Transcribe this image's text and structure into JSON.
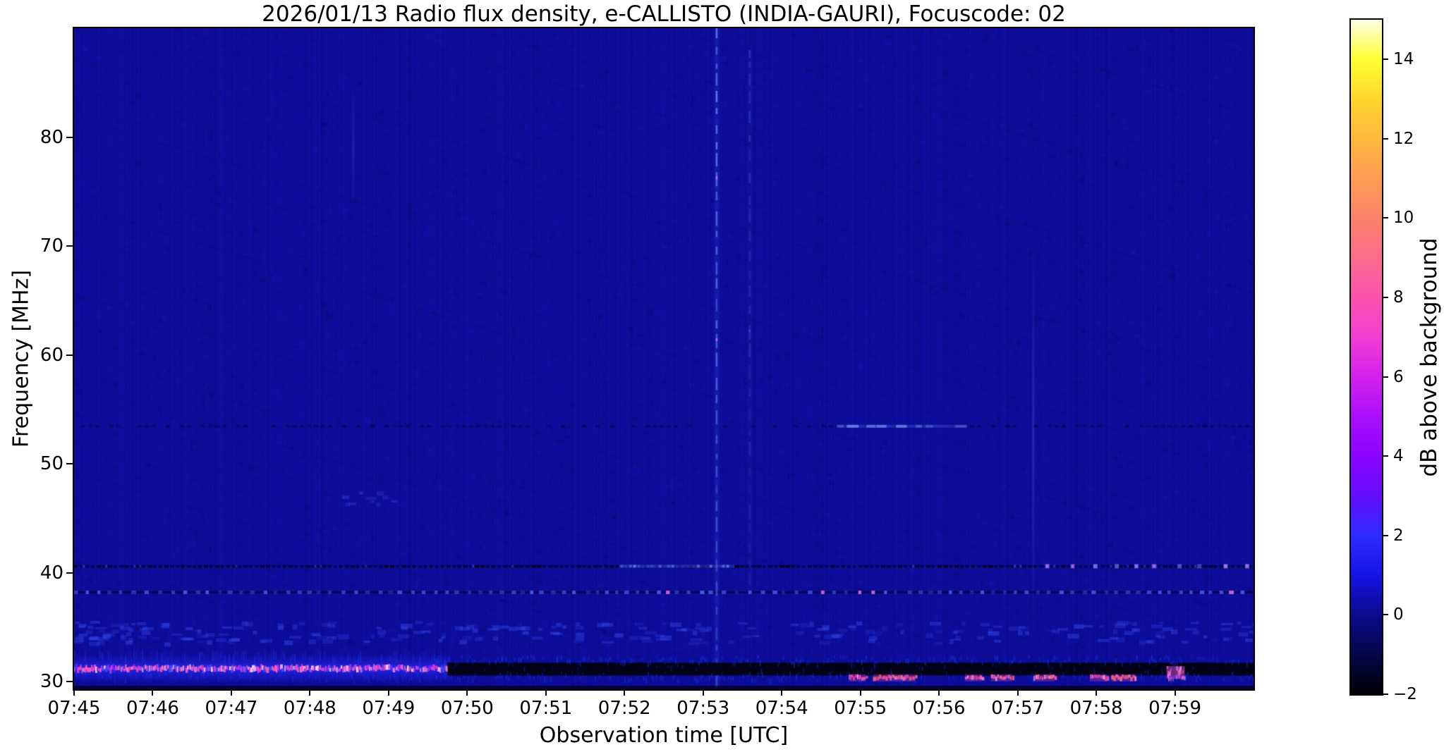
{
  "figure": {
    "title": "2026/01/13  Radio flux density, e-CALLISTO (INDIA-GAURI), Focuscode: 02",
    "x_axis": {
      "label": "Observation time [UTC]",
      "ticks": [
        "07:45",
        "07:46",
        "07:47",
        "07:48",
        "07:49",
        "07:50",
        "07:51",
        "07:52",
        "07:53",
        "07:54",
        "07:55",
        "07:56",
        "07:57",
        "07:58",
        "07:59"
      ]
    },
    "y_axis": {
      "label": "Frequency [MHz]",
      "tick_values": [
        80,
        70,
        60,
        50,
        40,
        30
      ],
      "ticks": [
        "80",
        "70",
        "60",
        "50",
        "40",
        "30"
      ]
    },
    "colorbar": {
      "label": "dB above background",
      "tick_values": [
        14,
        12,
        10,
        8,
        6,
        4,
        2,
        0,
        -2
      ],
      "ticks": [
        "14",
        "12",
        "10",
        "8",
        "6",
        "4",
        "2",
        "0",
        "−2"
      ],
      "range": [
        -2,
        15
      ],
      "colormap": "gnuplot2",
      "stops": [
        {
          "v": 15,
          "color": "#ffffe6"
        },
        {
          "v": 14,
          "color": "#ffff33"
        },
        {
          "v": 13,
          "color": "#ffd62e"
        },
        {
          "v": 12,
          "color": "#ffb83f"
        },
        {
          "v": 11,
          "color": "#ff9c55"
        },
        {
          "v": 10,
          "color": "#fb8368"
        },
        {
          "v": 9,
          "color": "#fb6c8c"
        },
        {
          "v": 8,
          "color": "#fb53ad"
        },
        {
          "v": 7,
          "color": "#f13ed2"
        },
        {
          "v": 6,
          "color": "#d222ec"
        },
        {
          "v": 5,
          "color": "#ab0ffa"
        },
        {
          "v": 4,
          "color": "#8903fe"
        },
        {
          "v": 3,
          "color": "#650efb"
        },
        {
          "v": 2,
          "color": "#2e2bff"
        },
        {
          "v": 1,
          "color": "#1414e6"
        },
        {
          "v": 0,
          "color": "#0b0b8f"
        },
        {
          "v": -1,
          "color": "#050549"
        },
        {
          "v": -2,
          "color": "#000005"
        }
      ]
    }
  },
  "chart_data": {
    "type": "heatmap",
    "title": "2026/01/13  Radio flux density, e-CALLISTO (INDIA-GAURI), Focuscode: 02",
    "xlabel": "Observation time [UTC]",
    "ylabel": "Frequency [MHz]",
    "x_start": "07:45",
    "x_end": "08:00",
    "duration_min": 15,
    "y_range": [
      29.3,
      90
    ],
    "value_range_db": [
      -2,
      15
    ],
    "background_level_db": 0.6,
    "noise": {
      "base": "#0d0d9a",
      "streak_light": "rgba(40,40,220,0.10)",
      "streak_dark": "rgba(0,0,60,0.12)"
    },
    "features": [
      {
        "kind": "vline_soft",
        "label": "faint vertical trace 07:48.5",
        "t": 3.55,
        "f0": 73,
        "f1": 85,
        "strength": 0.2
      },
      {
        "kind": "vline_soft",
        "label": "faint vertical trace 07:57.2",
        "t": 12.2,
        "f0": 34,
        "f1": 71,
        "strength": 0.3
      },
      {
        "kind": "hline_dark_dash",
        "label": "weak RFI channel 53.4 MHz",
        "f": 53.45,
        "t0": 0,
        "t1": 15
      },
      {
        "kind": "hline_glow",
        "label": "brightening of 53.4 MHz channel 07:54.7-07:56.3",
        "f": 53.45,
        "t0": 9.7,
        "t1": 11.35,
        "strength": 0.5
      },
      {
        "kind": "hline_dark_dots",
        "label": "RFI channel 40.6 MHz, dotted",
        "f": 40.6,
        "bright_min": [
          6.95,
          8.4
        ],
        "dots_from_min": 12.35
      },
      {
        "kind": "hline_blue_dots",
        "label": "RFI channel 38.2 MHz, dotted",
        "f": 38.2
      },
      {
        "kind": "speckle_field",
        "label": "weak bursts 33.6-35.6 MHz",
        "f0": 33.6,
        "f1": 35.6,
        "t0": 0,
        "t1": 15,
        "count": 260,
        "bias": "left"
      },
      {
        "kind": "speckle_field",
        "label": "weak patch near 47 MHz at 07:48.5",
        "f0": 46.4,
        "f1": 47.6,
        "t0": 3.4,
        "t1": 4.1,
        "count": 10
      },
      {
        "kind": "vline_dashed",
        "label": "bright dashed vertical interference at 07:53.2",
        "t": 8.17,
        "f0": 29.4,
        "f1": 90,
        "strength": 0.85
      },
      {
        "kind": "vline_dashed",
        "label": "fainter dashed vertical at 07:53.6",
        "t": 8.59,
        "f0": 38,
        "f1": 88,
        "strength": 0.3
      },
      {
        "kind": "band_glow",
        "label": "strong pink/magenta RFI band 31.2 MHz, 07:45-07:49.8",
        "f": 31.2,
        "t0": 0,
        "t1": 4.75
      },
      {
        "kind": "band_dark",
        "label": "band turns black 07:49.8-08:00",
        "f": 31.15,
        "t0": 4.75,
        "t1": 15
      },
      {
        "kind": "row_speckle",
        "label": "blue speckle above dark band",
        "f": 32.1,
        "t0": 4.6,
        "t1": 15,
        "alpha": 0.5
      },
      {
        "kind": "row_speckle",
        "label": "blue speckle bottom row",
        "f": 30.6,
        "t0": 0,
        "t1": 15,
        "alpha": 0.4
      },
      {
        "kind": "pink_spots",
        "label": "pink bursts near 30.3 MHz, 07:54.8-07:58.5",
        "f": 30.35,
        "segments_min": [
          [
            9.85,
            10.07
          ],
          [
            10.16,
            10.7
          ],
          [
            11.33,
            11.55
          ],
          [
            11.66,
            11.93
          ],
          [
            12.2,
            12.47
          ],
          [
            12.92,
            13.14
          ],
          [
            13.19,
            13.5
          ]
        ]
      },
      {
        "kind": "pink_blob",
        "label": "pink blob 07:59",
        "t": 14.0,
        "f": 30.9
      },
      {
        "kind": "edge_strip",
        "label": "dark bottom edge row"
      }
    ]
  }
}
